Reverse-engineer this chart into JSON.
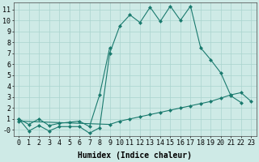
{
  "xlabel": "Humidex (Indice chaleur)",
  "x_values": [
    0,
    1,
    2,
    3,
    4,
    5,
    6,
    7,
    8,
    9,
    10,
    11,
    12,
    13,
    14,
    15,
    16,
    17,
    18,
    19,
    20,
    21,
    22,
    23
  ],
  "line1_y": [
    1.0,
    -0.1,
    0.4,
    -0.1,
    0.3,
    0.3,
    0.3,
    -0.3,
    0.2,
    7.0,
    9.5,
    10.5,
    9.8,
    11.2,
    9.9,
    11.3,
    10.0,
    11.3,
    7.5,
    6.4,
    5.2,
    3.1,
    2.5,
    null
  ],
  "line2_y": [
    1.0,
    0.5,
    1.0,
    0.4,
    0.6,
    0.7,
    0.8,
    0.3,
    3.2,
    7.5,
    null,
    null,
    null,
    null,
    null,
    null,
    null,
    null,
    null,
    null,
    null,
    null,
    null,
    null
  ],
  "line3_y": [
    0.8,
    null,
    null,
    null,
    null,
    null,
    null,
    null,
    null,
    0.5,
    0.8,
    1.0,
    1.2,
    1.4,
    1.6,
    1.8,
    2.0,
    2.2,
    2.4,
    2.6,
    2.9,
    3.2,
    3.4,
    2.6
  ],
  "xlim": [
    -0.5,
    23.5
  ],
  "ylim": [
    -0.6,
    11.6
  ],
  "yticks": [
    0,
    1,
    2,
    3,
    4,
    5,
    6,
    7,
    8,
    9,
    10,
    11
  ],
  "ytick_labels": [
    "-0",
    "1",
    "2",
    "3",
    "4",
    "5",
    "6",
    "7",
    "8",
    "9",
    "10",
    "11"
  ],
  "xticks": [
    0,
    1,
    2,
    3,
    4,
    5,
    6,
    7,
    8,
    9,
    10,
    11,
    12,
    13,
    14,
    15,
    16,
    17,
    18,
    19,
    20,
    21,
    22,
    23
  ],
  "line_color": "#1a7a6e",
  "bg_color": "#ceeae6",
  "grid_color": "#aad4ce",
  "xlabel_fontsize": 7,
  "tick_fontsize": 6
}
